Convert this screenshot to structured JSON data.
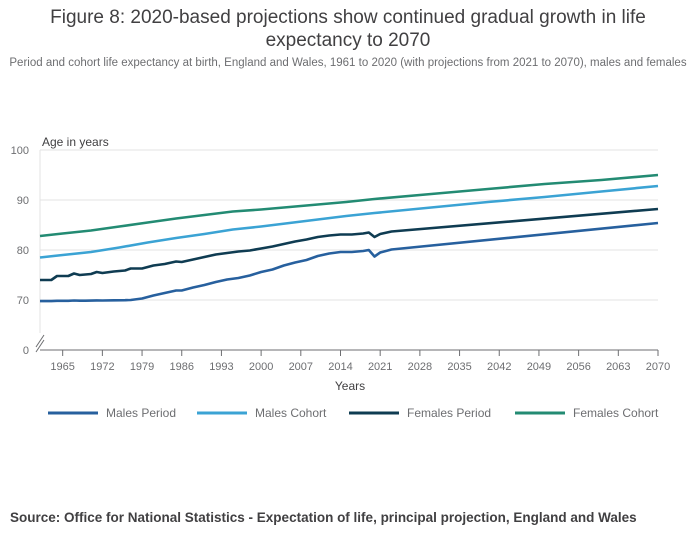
{
  "chart_data": {
    "type": "line",
    "title": "Figure 8: 2020-based projections show continued gradual growth in life expectancy to 2070",
    "subtitle": "Period and cohort life expectancy at birth, England and Wales, 1961 to 2020 (with projections from 2021 to 2070), males and females",
    "ylabel": "Age in years",
    "xlabel": "Years",
    "ylim": [
      0,
      100
    ],
    "y_ticks": [
      "0",
      "70",
      "80",
      "90",
      "100"
    ],
    "y_axis_break": true,
    "xlim": [
      1961,
      2070
    ],
    "x_ticks": [
      "1965",
      "1972",
      "1979",
      "1986",
      "1993",
      "2000",
      "2007",
      "2014",
      "2021",
      "2028",
      "2035",
      "2042",
      "2049",
      "2056",
      "2063",
      "2070"
    ],
    "legend_position": "bottom",
    "series": [
      {
        "name": "Males Period",
        "color": "#27609e",
        "points": [
          [
            1961,
            68.1
          ],
          [
            1963,
            68.0
          ],
          [
            1964,
            68.6
          ],
          [
            1966,
            68.6
          ],
          [
            1967,
            69.1
          ],
          [
            1968,
            68.8
          ],
          [
            1969,
            68.8
          ],
          [
            1970,
            69.0
          ],
          [
            1971,
            69.3
          ],
          [
            1972,
            69.1
          ],
          [
            1974,
            69.4
          ],
          [
            1976,
            69.7
          ],
          [
            1977,
            70.0
          ],
          [
            1979,
            70.3
          ],
          [
            1981,
            70.9
          ],
          [
            1983,
            71.4
          ],
          [
            1985,
            71.9
          ],
          [
            1986,
            71.9
          ],
          [
            1988,
            72.5
          ],
          [
            1990,
            73.0
          ],
          [
            1992,
            73.6
          ],
          [
            1994,
            74.1
          ],
          [
            1996,
            74.4
          ],
          [
            1998,
            74.9
          ],
          [
            2000,
            75.6
          ],
          [
            2002,
            76.1
          ],
          [
            2004,
            76.9
          ],
          [
            2006,
            77.5
          ],
          [
            2008,
            78.0
          ],
          [
            2010,
            78.8
          ],
          [
            2012,
            79.3
          ],
          [
            2014,
            79.6
          ],
          [
            2016,
            79.6
          ],
          [
            2018,
            79.8
          ],
          [
            2019,
            80.0
          ],
          [
            2020,
            78.7
          ],
          [
            2021,
            79.5
          ],
          [
            2023,
            80.1
          ],
          [
            2070,
            85.4
          ]
        ]
      },
      {
        "name": "Males Cohort",
        "color": "#3ba3d4",
        "points": [
          [
            1961,
            78.5
          ],
          [
            1965,
            79.0
          ],
          [
            1970,
            79.6
          ],
          [
            1975,
            80.5
          ],
          [
            1980,
            81.5
          ],
          [
            1985,
            82.4
          ],
          [
            1990,
            83.2
          ],
          [
            1995,
            84.1
          ],
          [
            2000,
            84.7
          ],
          [
            2005,
            85.4
          ],
          [
            2010,
            86.1
          ],
          [
            2015,
            86.8
          ],
          [
            2020,
            87.4
          ],
          [
            2030,
            88.5
          ],
          [
            2040,
            89.6
          ],
          [
            2050,
            90.6
          ],
          [
            2060,
            91.7
          ],
          [
            2070,
            92.8
          ]
        ]
      },
      {
        "name": "Females Period",
        "color": "#0f3c52",
        "points": [
          [
            1961,
            74.0
          ],
          [
            1963,
            74.0
          ],
          [
            1964,
            74.8
          ],
          [
            1966,
            74.8
          ],
          [
            1967,
            75.3
          ],
          [
            1968,
            75.0
          ],
          [
            1970,
            75.2
          ],
          [
            1971,
            75.6
          ],
          [
            1972,
            75.4
          ],
          [
            1974,
            75.7
          ],
          [
            1976,
            75.9
          ],
          [
            1977,
            76.3
          ],
          [
            1979,
            76.3
          ],
          [
            1981,
            76.9
          ],
          [
            1983,
            77.2
          ],
          [
            1985,
            77.7
          ],
          [
            1986,
            77.6
          ],
          [
            1988,
            78.1
          ],
          [
            1990,
            78.6
          ],
          [
            1992,
            79.1
          ],
          [
            1994,
            79.4
          ],
          [
            1996,
            79.7
          ],
          [
            1998,
            79.9
          ],
          [
            2000,
            80.3
          ],
          [
            2002,
            80.7
          ],
          [
            2004,
            81.2
          ],
          [
            2006,
            81.7
          ],
          [
            2008,
            82.1
          ],
          [
            2010,
            82.6
          ],
          [
            2012,
            82.9
          ],
          [
            2014,
            83.1
          ],
          [
            2016,
            83.1
          ],
          [
            2018,
            83.3
          ],
          [
            2019,
            83.5
          ],
          [
            2020,
            82.6
          ],
          [
            2021,
            83.2
          ],
          [
            2023,
            83.7
          ],
          [
            2070,
            88.2
          ]
        ]
      },
      {
        "name": "Females Cohort",
        "color": "#238b73",
        "points": [
          [
            1961,
            82.8
          ],
          [
            1965,
            83.3
          ],
          [
            1970,
            83.9
          ],
          [
            1975,
            84.7
          ],
          [
            1980,
            85.5
          ],
          [
            1985,
            86.3
          ],
          [
            1990,
            87.0
          ],
          [
            1995,
            87.7
          ],
          [
            2000,
            88.1
          ],
          [
            2005,
            88.6
          ],
          [
            2010,
            89.1
          ],
          [
            2015,
            89.6
          ],
          [
            2020,
            90.2
          ],
          [
            2030,
            91.2
          ],
          [
            2040,
            92.2
          ],
          [
            2050,
            93.2
          ],
          [
            2060,
            94.0
          ],
          [
            2070,
            95.0
          ]
        ]
      }
    ]
  },
  "source": "Source: Office for National Statistics - Expectation of life, principal projection, England and Wales"
}
